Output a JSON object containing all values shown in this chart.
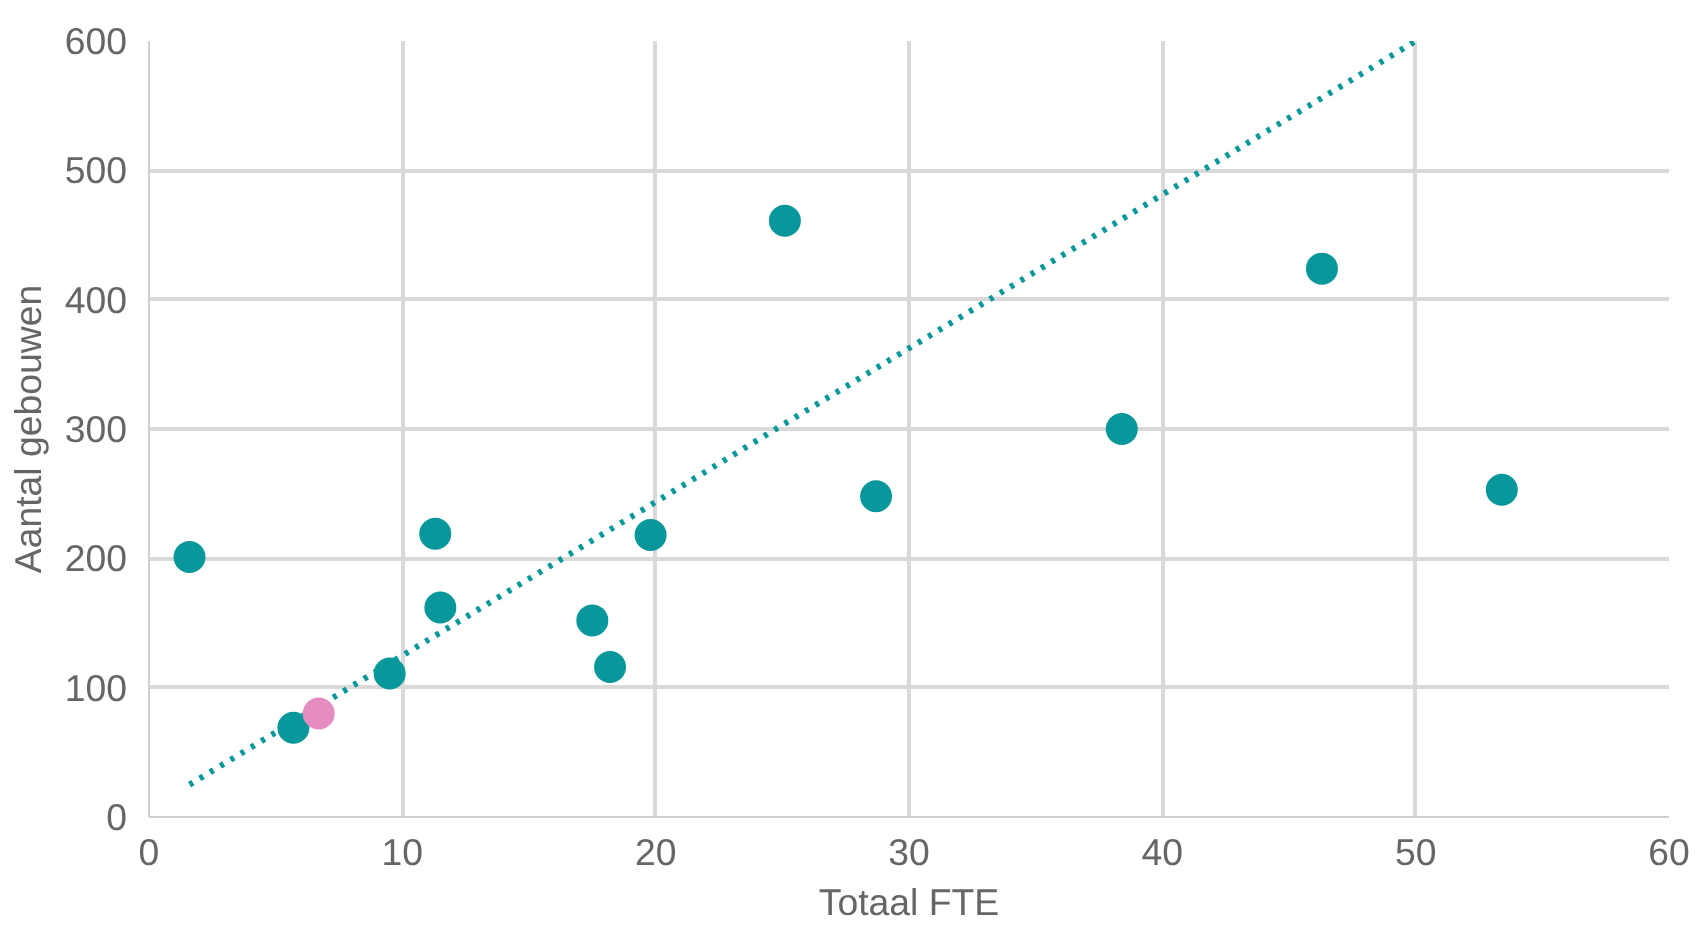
{
  "chart_data": {
    "type": "scatter",
    "xlabel": "Totaal FTE",
    "ylabel": "Aantal gebouwen",
    "xlim": [
      0,
      60
    ],
    "ylim": [
      0,
      600
    ],
    "xticks": [
      0,
      10,
      20,
      30,
      40,
      50,
      60
    ],
    "yticks": [
      0,
      100,
      200,
      300,
      400,
      500,
      600
    ],
    "grid": true,
    "marker": "circle",
    "series": [
      {
        "color": "#08979a",
        "x": [
          1.6,
          5.7,
          9.5,
          11.3,
          11.5,
          17.5,
          18.2,
          19.8,
          25.1,
          28.7,
          38.4,
          46.3,
          53.4
        ],
        "values": [
          201,
          69,
          111,
          219,
          162,
          152,
          116,
          218,
          461,
          248,
          300,
          424,
          253
        ]
      },
      {
        "color": "#e58cc0",
        "x": [
          6.7
        ],
        "values": [
          80
        ]
      },
      {
        "type": "line",
        "line_style": "dotted",
        "marker": "none",
        "color": "#08979a",
        "x": [
          1.6,
          50.0
        ],
        "values": [
          25,
          600
        ]
      }
    ]
  }
}
